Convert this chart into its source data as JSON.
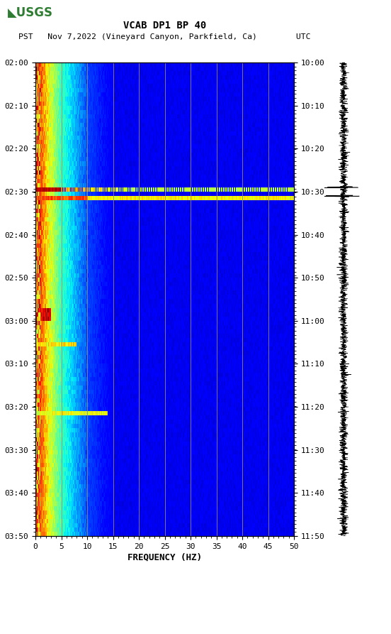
{
  "title_line1": "VCAB DP1 BP 40",
  "title_line2": "PST   Nov 7,2022 (Vineyard Canyon, Parkfield, Ca)        UTC",
  "xlabel": "FREQUENCY (HZ)",
  "freq_min": 0,
  "freq_max": 50,
  "time_ticks_left": [
    "02:00",
    "02:10",
    "02:20",
    "02:30",
    "02:40",
    "02:50",
    "03:00",
    "03:10",
    "03:20",
    "03:30",
    "03:40",
    "03:50"
  ],
  "time_ticks_right": [
    "10:00",
    "10:10",
    "10:20",
    "10:30",
    "10:40",
    "10:50",
    "11:00",
    "11:10",
    "11:20",
    "11:30",
    "11:40",
    "11:50"
  ],
  "freq_ticks": [
    0,
    5,
    10,
    15,
    20,
    25,
    30,
    35,
    40,
    45,
    50
  ],
  "vertical_line_color": "#9B8B6E",
  "n_time": 110,
  "n_freq": 500,
  "noise_line1_row": 29,
  "noise_line2_row": 31,
  "event1_rows": [
    57,
    58,
    59
  ],
  "event2_rows": [
    65
  ],
  "event3_rows": [
    81
  ]
}
